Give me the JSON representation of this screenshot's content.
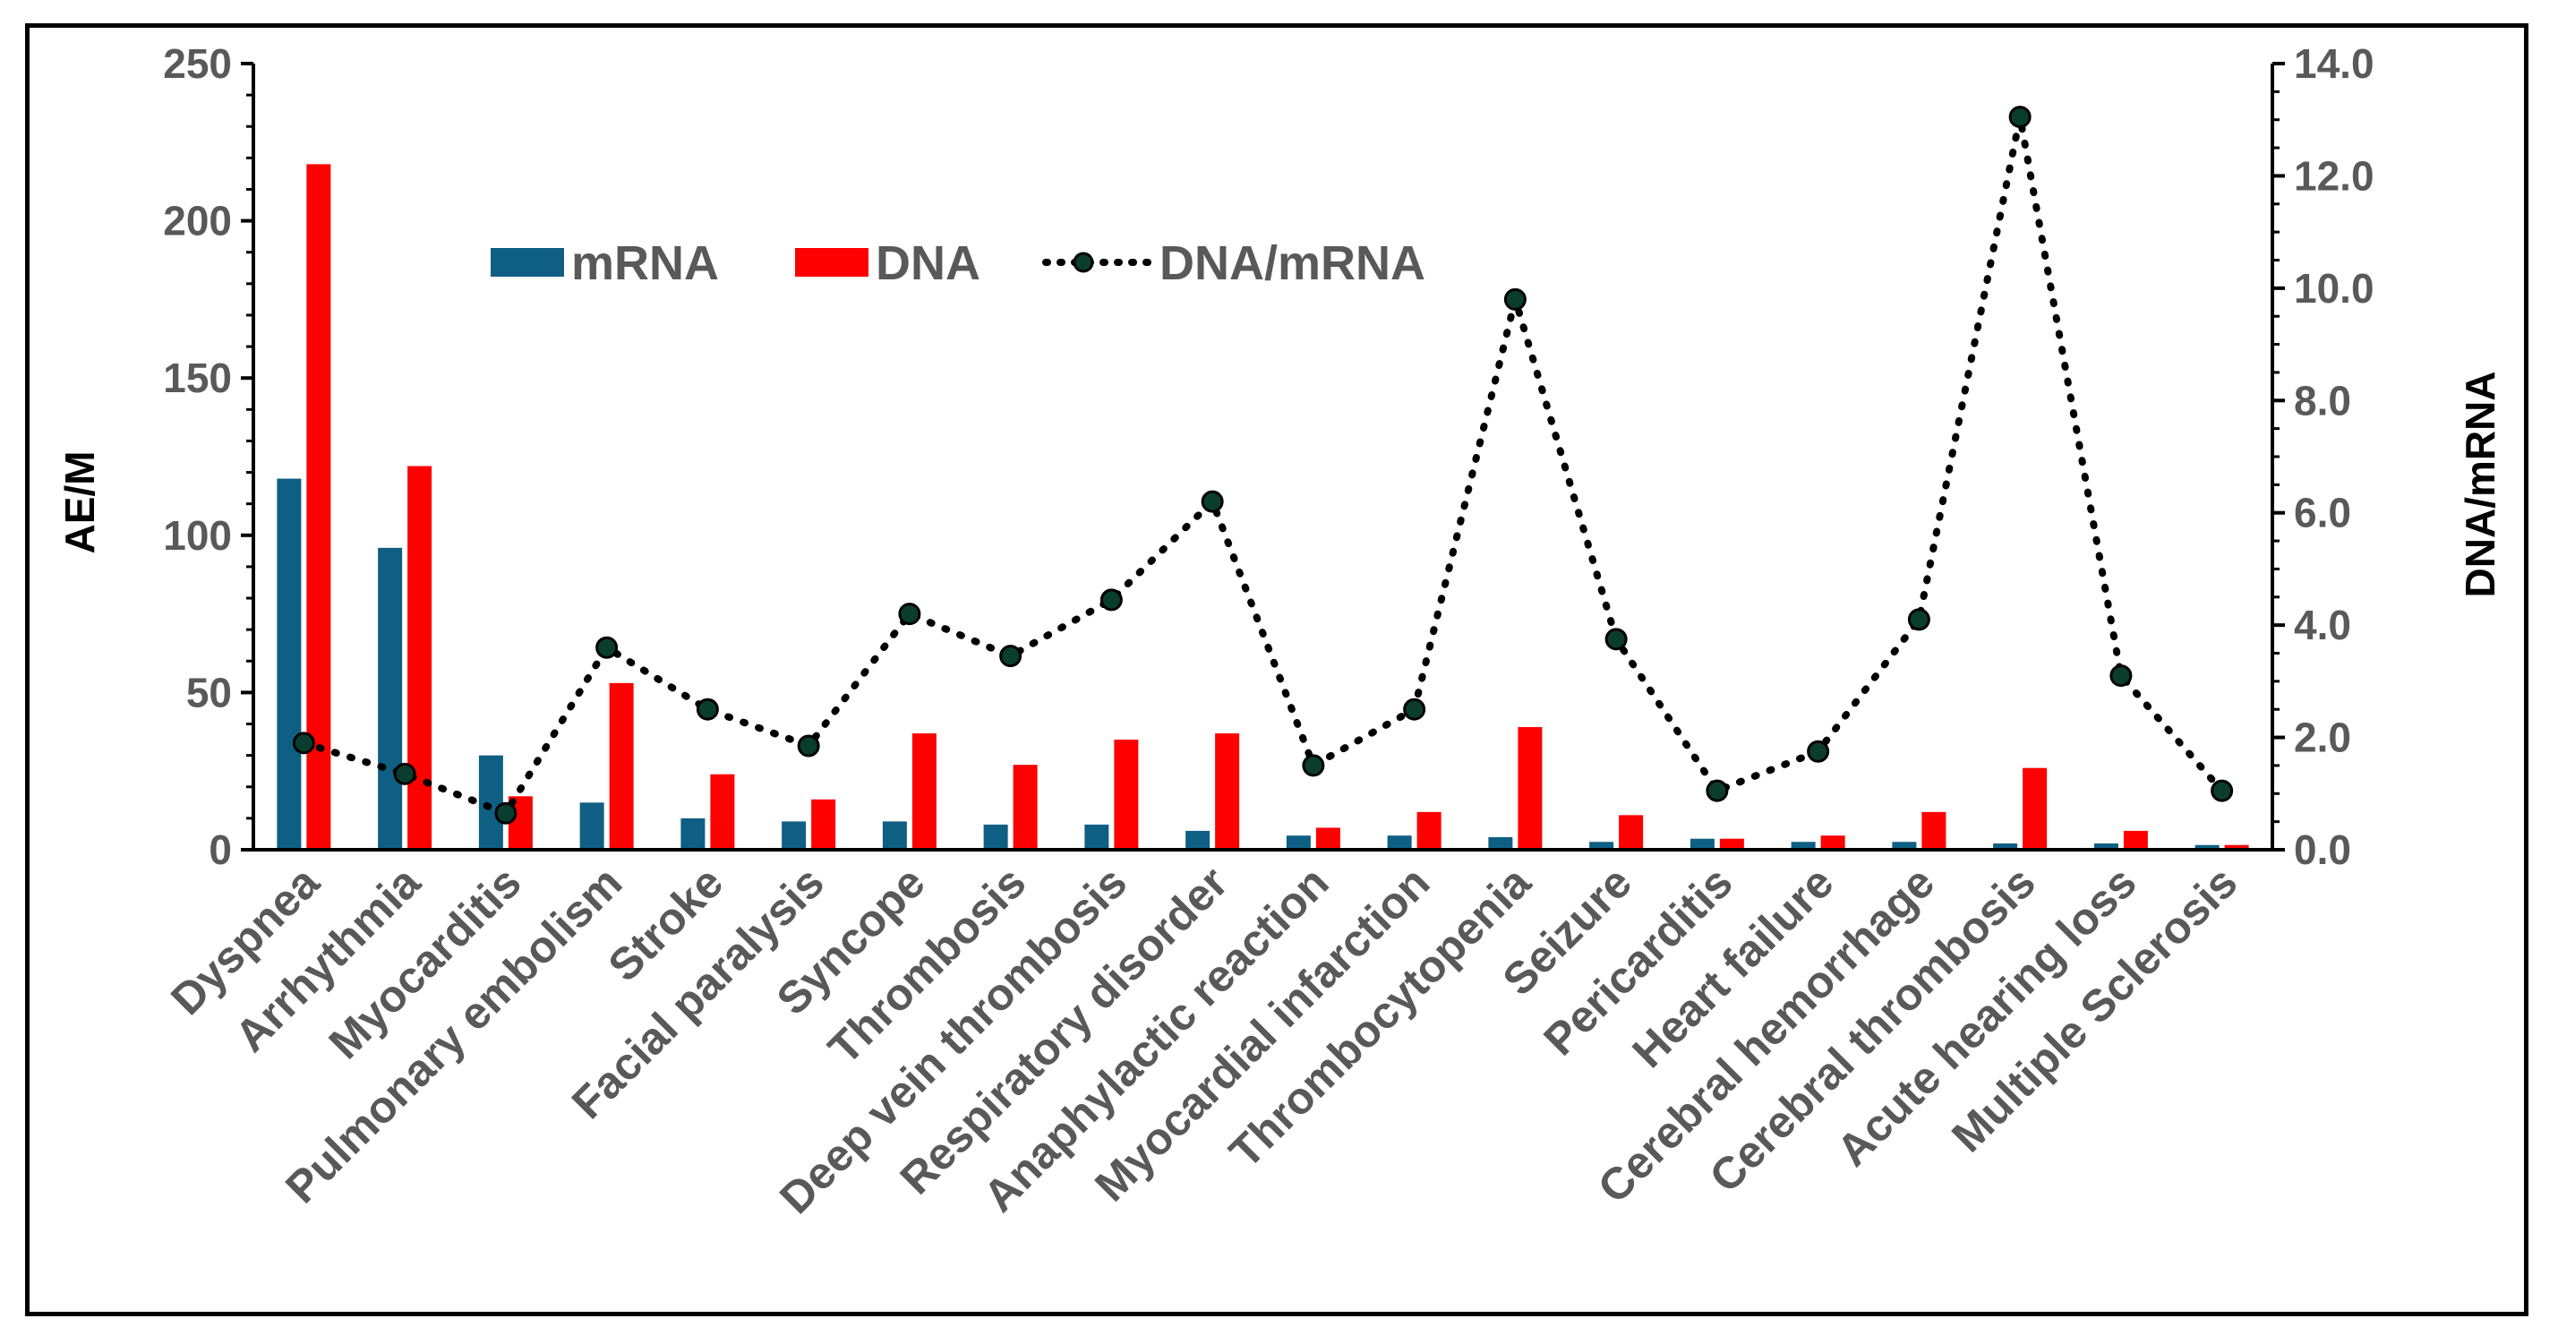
{
  "chart_data": {
    "type": "bar",
    "title": "",
    "xlabel": "",
    "ylabel": "AE/M",
    "y2label": "DNA/mRNA",
    "ylim": [
      0,
      250
    ],
    "y2lim": [
      0,
      14
    ],
    "yticks": [
      "0",
      "50",
      "100",
      "150",
      "200",
      "250"
    ],
    "y2ticks": [
      "0.0",
      "2.0",
      "4.0",
      "6.0",
      "8.0",
      "10.0",
      "12.0",
      "14.0"
    ],
    "categories": [
      "Dyspnea",
      "Arrhythmia",
      "Myocarditis",
      "Pulmonary embolism",
      "Stroke",
      "Facial paralysis",
      "Syncope",
      "Thrombosis",
      "Deep vein thrombosis",
      "Respiratory disorder",
      "Anaphylactic reaction",
      "Myocardial infarction",
      "Thrombocytopenia",
      "Seizure",
      "Pericarditis",
      "Heart failure",
      "Cerebral hemorrhage",
      "Cerebral thrombosis",
      "Acute hearing loss",
      "Multiple Sclerosis"
    ],
    "series": [
      {
        "name": "mRNA",
        "type": "bar",
        "axis": "left",
        "color": "#0f5f84",
        "values": [
          118,
          96,
          30,
          15,
          10,
          9,
          9,
          8,
          8,
          6,
          4.5,
          4.5,
          4,
          2.5,
          3.5,
          2.5,
          2.5,
          2,
          2,
          1.5
        ]
      },
      {
        "name": "DNA",
        "type": "bar",
        "axis": "left",
        "color": "#ff0000",
        "values": [
          218,
          122,
          17,
          53,
          24,
          16,
          37,
          27,
          35,
          37,
          7,
          12,
          39,
          11,
          3.5,
          4.5,
          12,
          26,
          6,
          1.5
        ]
      },
      {
        "name": "DNA/mRNA",
        "type": "line",
        "axis": "right",
        "color": "#000000",
        "marker_color": "#0b3d2e",
        "values": [
          1.9,
          1.35,
          0.65,
          3.6,
          2.5,
          1.85,
          4.2,
          3.45,
          4.45,
          6.2,
          1.5,
          2.5,
          9.8,
          3.75,
          1.05,
          1.75,
          4.1,
          13.05,
          3.1,
          1.05
        ]
      }
    ],
    "legend": {
      "position": "top-center"
    }
  }
}
